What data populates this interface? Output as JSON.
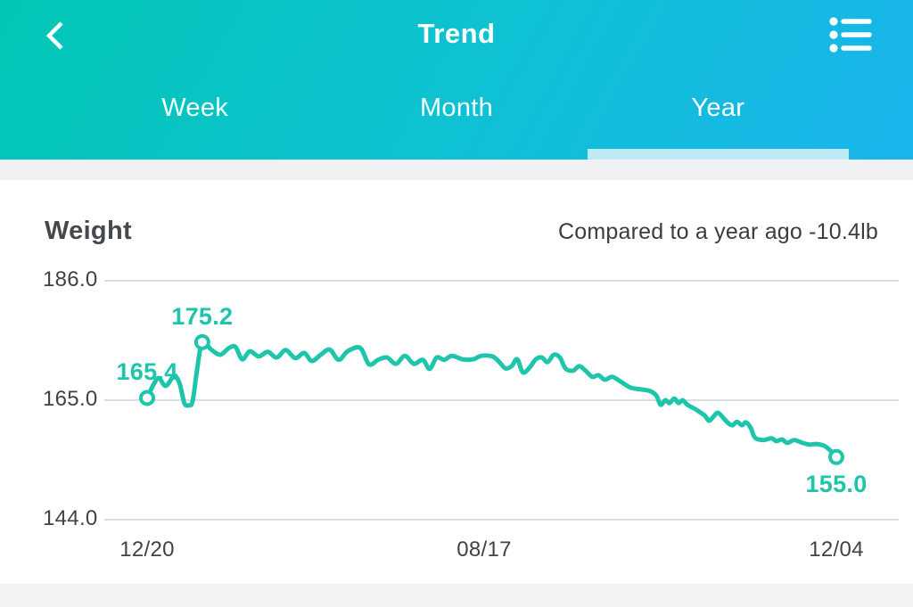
{
  "header": {
    "title": "Trend",
    "back_icon": "chevron-left",
    "menu_icon": "list-bullets",
    "tabs": [
      {
        "label": "Week",
        "active": false
      },
      {
        "label": "Month",
        "active": false
      },
      {
        "label": "Year",
        "active": true
      }
    ]
  },
  "chart_header": {
    "title": "Weight",
    "comparison": "Compared to a year ago -10.4lb"
  },
  "colors": {
    "accent": "#1EC5AB",
    "header_gradient_start": "#01C6B4",
    "header_gradient_end": "#19B4EC",
    "tab_underline": "#BEE9F7",
    "gridline": "#DBDEE0",
    "axis_text": "#3F4347",
    "marker_fill": "#FFFFFF"
  },
  "chart_data": {
    "type": "line",
    "title": "Weight",
    "unit": "lb",
    "ylim": [
      144,
      186
    ],
    "grid": true,
    "y_ticks": [
      186.0,
      165.0,
      144.0
    ],
    "y_tick_labels": [
      "186.0",
      "165.0",
      "144.0"
    ],
    "x_tick_labels": [
      "12/20",
      "08/17",
      "12/04"
    ],
    "x_tick_positions": [
      0,
      48.9,
      100
    ],
    "annotations": [
      {
        "label": "165.4",
        "x": 0.0,
        "v": 165.4,
        "pos": "above"
      },
      {
        "label": "175.2",
        "x": 8.0,
        "v": 175.2,
        "pos": "above"
      },
      {
        "label": "155.0",
        "x": 100.0,
        "v": 155.0,
        "pos": "below"
      }
    ],
    "points": [
      [
        0.0,
        165.4
      ],
      [
        0.9,
        167.7
      ],
      [
        1.7,
        168.9
      ],
      [
        2.7,
        167.5
      ],
      [
        3.9,
        169.2
      ],
      [
        4.7,
        168.0
      ],
      [
        5.4,
        164.5
      ],
      [
        6.0,
        164.1
      ],
      [
        6.6,
        164.8
      ],
      [
        7.2,
        170.0
      ],
      [
        8.0,
        175.2
      ],
      [
        9.3,
        173.9
      ],
      [
        10.6,
        173.0
      ],
      [
        11.8,
        174.1
      ],
      [
        12.8,
        174.4
      ],
      [
        13.8,
        172.2
      ],
      [
        14.9,
        173.6
      ],
      [
        16.2,
        172.7
      ],
      [
        17.5,
        173.5
      ],
      [
        18.8,
        172.5
      ],
      [
        20.1,
        173.8
      ],
      [
        21.5,
        172.4
      ],
      [
        22.8,
        173.3
      ],
      [
        23.9,
        171.9
      ],
      [
        25.2,
        173.0
      ],
      [
        26.5,
        173.9
      ],
      [
        27.8,
        172.1
      ],
      [
        29.1,
        173.6
      ],
      [
        30.9,
        174.2
      ],
      [
        32.2,
        171.3
      ],
      [
        33.5,
        172.1
      ],
      [
        34.8,
        172.5
      ],
      [
        36.1,
        171.4
      ],
      [
        37.4,
        172.8
      ],
      [
        38.7,
        171.4
      ],
      [
        40.0,
        172.1
      ],
      [
        41.0,
        170.5
      ],
      [
        42.0,
        172.5
      ],
      [
        43.1,
        172.1
      ],
      [
        44.2,
        172.8
      ],
      [
        45.8,
        172.2
      ],
      [
        47.3,
        172.2
      ],
      [
        48.5,
        172.8
      ],
      [
        50.1,
        172.7
      ],
      [
        51.1,
        171.7
      ],
      [
        52.0,
        170.6
      ],
      [
        52.9,
        171.0
      ],
      [
        53.7,
        172.2
      ],
      [
        54.5,
        169.9
      ],
      [
        55.4,
        170.6
      ],
      [
        56.4,
        172.2
      ],
      [
        57.3,
        172.5
      ],
      [
        58.1,
        171.7
      ],
      [
        59.0,
        173.0
      ],
      [
        59.9,
        172.5
      ],
      [
        60.7,
        170.6
      ],
      [
        61.8,
        170.2
      ],
      [
        62.7,
        171.0
      ],
      [
        63.6,
        170.2
      ],
      [
        64.6,
        169.1
      ],
      [
        65.5,
        169.4
      ],
      [
        66.4,
        168.6
      ],
      [
        67.5,
        169.1
      ],
      [
        68.8,
        168.2
      ],
      [
        70.2,
        167.2
      ],
      [
        71.7,
        166.9
      ],
      [
        73.0,
        166.6
      ],
      [
        73.9,
        165.8
      ],
      [
        74.5,
        164.2
      ],
      [
        75.2,
        165.0
      ],
      [
        75.8,
        164.5
      ],
      [
        76.5,
        165.3
      ],
      [
        77.1,
        164.5
      ],
      [
        77.7,
        165.0
      ],
      [
        78.4,
        164.2
      ],
      [
        79.7,
        163.3
      ],
      [
        80.9,
        162.3
      ],
      [
        81.5,
        161.4
      ],
      [
        82.1,
        162.0
      ],
      [
        82.8,
        162.8
      ],
      [
        83.6,
        161.9
      ],
      [
        84.2,
        161.1
      ],
      [
        84.9,
        160.6
      ],
      [
        85.6,
        161.2
      ],
      [
        86.3,
        160.6
      ],
      [
        86.9,
        161.1
      ],
      [
        87.6,
        160.1
      ],
      [
        88.2,
        158.4
      ],
      [
        89.4,
        158.0
      ],
      [
        90.6,
        158.3
      ],
      [
        91.3,
        157.8
      ],
      [
        92.1,
        158.1
      ],
      [
        92.9,
        157.5
      ],
      [
        93.9,
        158.0
      ],
      [
        95.1,
        157.5
      ],
      [
        96.1,
        157.2
      ],
      [
        97.1,
        157.3
      ],
      [
        98.2,
        157.0
      ],
      [
        99.1,
        156.2
      ],
      [
        100.0,
        155.0
      ]
    ]
  }
}
